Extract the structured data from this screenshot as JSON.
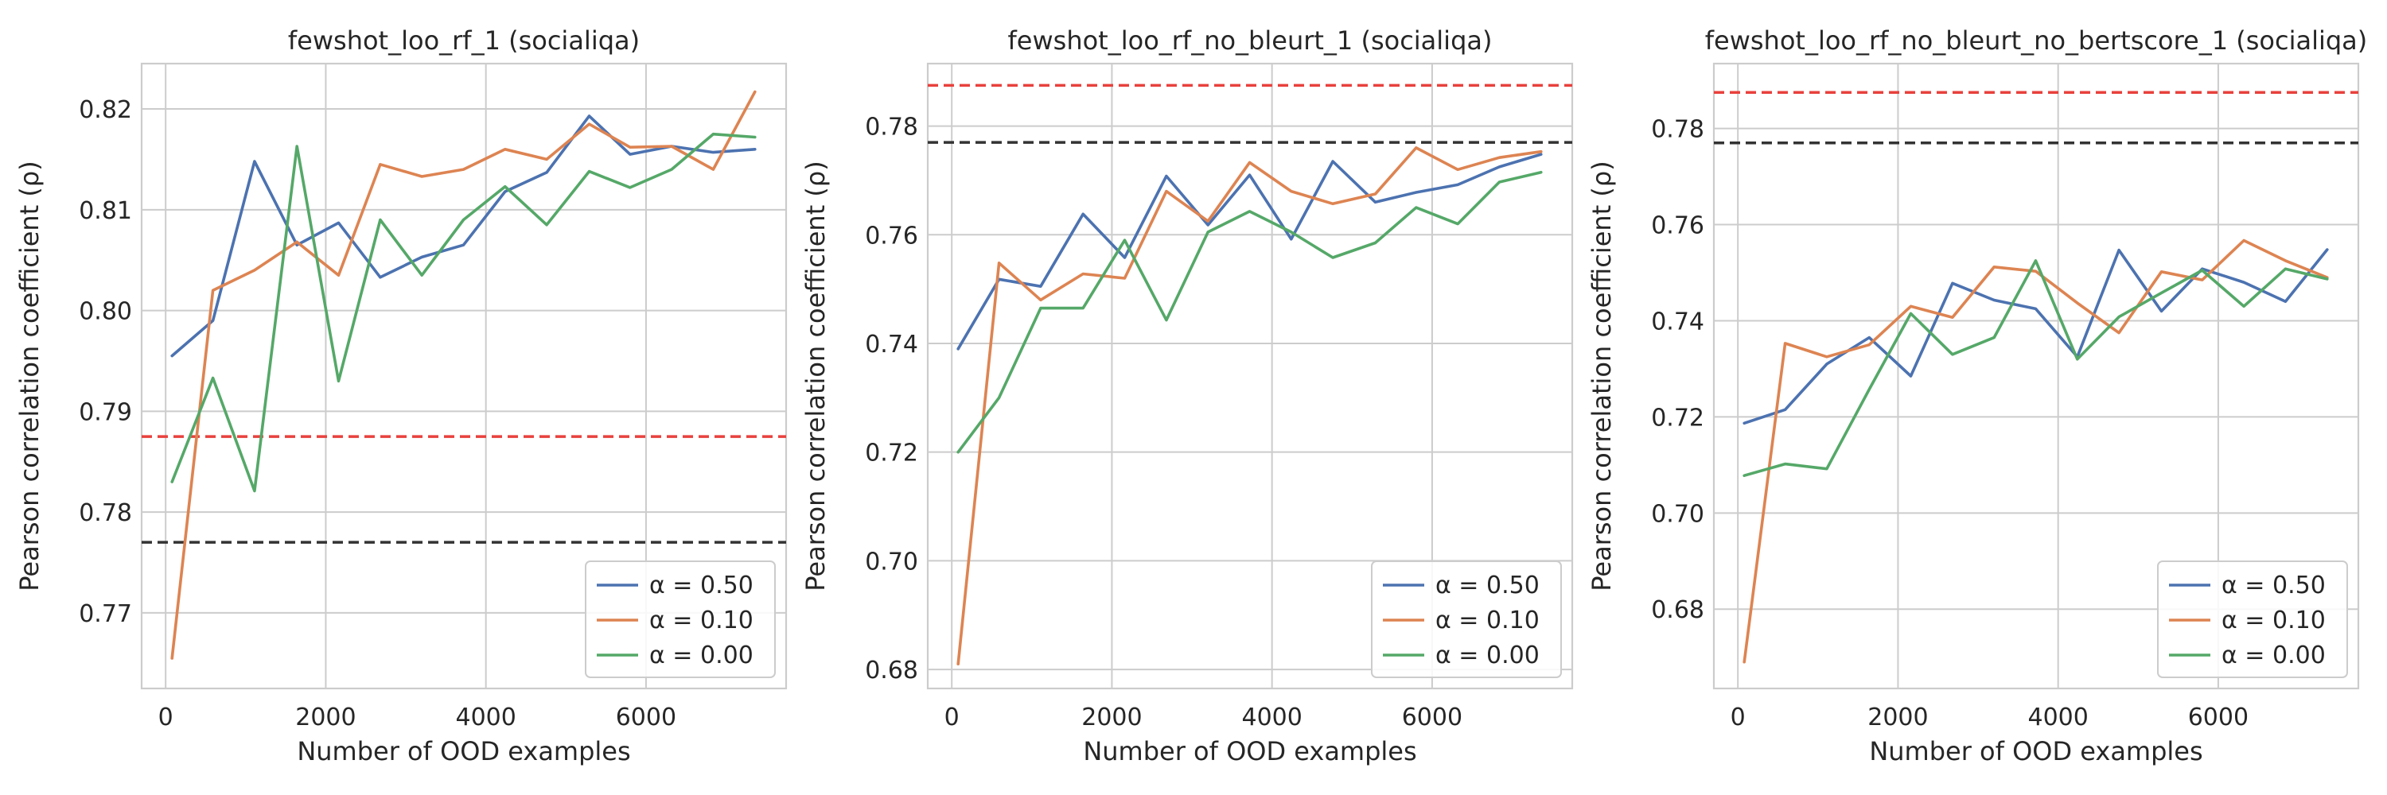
{
  "chart_data": [
    {
      "type": "line",
      "title": "fewshot_loo_rf_1 (socialiqa)",
      "xlabel": "Number of OOD examples",
      "ylabel": "Pearson correlation coefficient (ρ)",
      "xlim": [
        -300,
        7750
      ],
      "ylim": [
        0.7625,
        0.8245
      ],
      "xticks": [
        0,
        2000,
        4000,
        6000
      ],
      "yticks": [
        0.77,
        0.78,
        0.79,
        0.8,
        0.81,
        0.82
      ],
      "ytick_format": 2,
      "grid": true,
      "legend_position": "lower-right",
      "hlines": [
        {
          "y": 0.7875,
          "color": "#e8413d",
          "style": "dashed"
        },
        {
          "y": 0.777,
          "color": "#333333",
          "style": "dashed"
        }
      ],
      "x": [
        80,
        590,
        1110,
        1640,
        2160,
        2680,
        3200,
        3720,
        4240,
        4760,
        5290,
        5800,
        6320,
        6840,
        7360
      ],
      "series": [
        {
          "name": "α = 0.50",
          "color": "#4c72b0",
          "values": [
            0.7955,
            0.799,
            0.8148,
            0.8065,
            0.8087,
            0.8033,
            0.8053,
            0.8065,
            0.8118,
            0.8137,
            0.8193,
            0.8155,
            0.8163,
            0.8157,
            0.816
          ]
        },
        {
          "name": "α = 0.10",
          "color": "#dd8452",
          "values": [
            0.7655,
            0.802,
            0.804,
            0.8068,
            0.8035,
            0.8145,
            0.8133,
            0.814,
            0.816,
            0.815,
            0.8185,
            0.8162,
            0.8163,
            0.814,
            0.8217
          ]
        },
        {
          "name": "α = 0.00",
          "color": "#55a868",
          "values": [
            0.783,
            0.7933,
            0.7821,
            0.8163,
            0.793,
            0.809,
            0.8035,
            0.809,
            0.8123,
            0.8085,
            0.8138,
            0.8122,
            0.814,
            0.8175,
            0.8172
          ]
        }
      ]
    },
    {
      "type": "line",
      "title": "fewshot_loo_rf_no_bleurt_1 (socialiqa)",
      "xlabel": "Number of OOD examples",
      "ylabel": "Pearson correlation coefficient (ρ)",
      "xlim": [
        -300,
        7750
      ],
      "ylim": [
        0.6765,
        0.7915
      ],
      "xticks": [
        0,
        2000,
        4000,
        6000
      ],
      "yticks": [
        0.68,
        0.7,
        0.72,
        0.74,
        0.76,
        0.78
      ],
      "ytick_format": 2,
      "grid": true,
      "legend_position": "lower-right",
      "hlines": [
        {
          "y": 0.7875,
          "color": "#e8413d",
          "style": "dashed"
        },
        {
          "y": 0.777,
          "color": "#333333",
          "style": "dashed"
        }
      ],
      "x": [
        80,
        590,
        1110,
        1640,
        2160,
        2680,
        3200,
        3720,
        4240,
        4760,
        5290,
        5800,
        6320,
        6840,
        7360
      ],
      "series": [
        {
          "name": "α = 0.50",
          "color": "#4c72b0",
          "values": [
            0.739,
            0.7518,
            0.7505,
            0.7638,
            0.7558,
            0.7708,
            0.7618,
            0.771,
            0.7592,
            0.7735,
            0.766,
            0.7678,
            0.7692,
            0.7725,
            0.7748
          ]
        },
        {
          "name": "α = 0.10",
          "color": "#dd8452",
          "values": [
            0.681,
            0.7548,
            0.748,
            0.7528,
            0.752,
            0.768,
            0.7625,
            0.7733,
            0.768,
            0.7657,
            0.7675,
            0.776,
            0.772,
            0.7742,
            0.7753
          ]
        },
        {
          "name": "α = 0.00",
          "color": "#55a868",
          "values": [
            0.72,
            0.73,
            0.7465,
            0.7465,
            0.759,
            0.7443,
            0.7605,
            0.7643,
            0.7605,
            0.7558,
            0.7585,
            0.765,
            0.762,
            0.7697,
            0.7715
          ]
        }
      ]
    },
    {
      "type": "line",
      "title": "fewshot_loo_rf_no_bleurt_no_bertscore_1 (socialiqa)",
      "xlabel": "Number of OOD examples",
      "ylabel": "Pearson correlation coefficient (ρ)",
      "xlim": [
        -300,
        7750
      ],
      "ylim": [
        0.6635,
        0.7935
      ],
      "xticks": [
        0,
        2000,
        4000,
        6000
      ],
      "yticks": [
        0.68,
        0.7,
        0.72,
        0.74,
        0.76,
        0.78
      ],
      "ytick_format": 2,
      "grid": true,
      "legend_position": "lower-right",
      "hlines": [
        {
          "y": 0.7875,
          "color": "#e8413d",
          "style": "dashed"
        },
        {
          "y": 0.777,
          "color": "#333333",
          "style": "dashed"
        }
      ],
      "x": [
        80,
        590,
        1110,
        1640,
        2160,
        2680,
        3200,
        3720,
        4240,
        4760,
        5290,
        5800,
        6320,
        6840,
        7360
      ],
      "series": [
        {
          "name": "α = 0.50",
          "color": "#4c72b0",
          "values": [
            0.7187,
            0.7215,
            0.731,
            0.7365,
            0.7285,
            0.7478,
            0.7443,
            0.7425,
            0.7325,
            0.7547,
            0.742,
            0.7508,
            0.748,
            0.744,
            0.7548
          ]
        },
        {
          "name": "α = 0.10",
          "color": "#dd8452",
          "values": [
            0.669,
            0.7353,
            0.7325,
            0.735,
            0.743,
            0.7407,
            0.7512,
            0.7503,
            0.7437,
            0.7375,
            0.7502,
            0.7485,
            0.7567,
            0.7525,
            0.749
          ]
        },
        {
          "name": "α = 0.00",
          "color": "#55a868",
          "values": [
            0.7078,
            0.7102,
            0.7092,
            0.7257,
            0.7415,
            0.733,
            0.7365,
            0.7525,
            0.732,
            0.7408,
            0.7458,
            0.7505,
            0.743,
            0.7508,
            0.7487
          ]
        }
      ]
    }
  ]
}
